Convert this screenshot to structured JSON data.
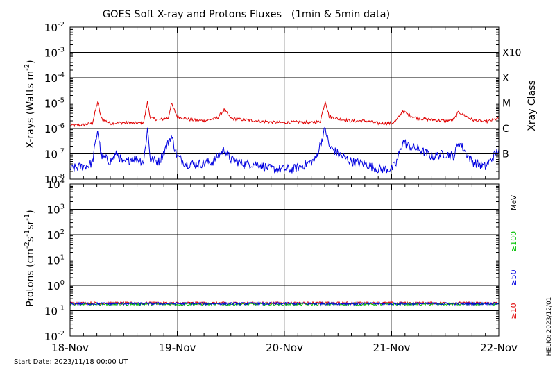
{
  "title": "GOES Soft X-ray and Protons Fluxes   (1min & 5min data)",
  "start_date": "Start Date: 2023/11/18 00:00 UT",
  "helio_stamp": "HELIO: 2023/12/01",
  "colors": {
    "xray_long": "#e00000",
    "xray_short": "#0000e0",
    "proton_10": "#e00000",
    "proton_50": "#0000e0",
    "proton_100": "#00c000",
    "vgrid": "#a0a0a0",
    "frame": "#000000"
  },
  "chart_data": [
    {
      "type": "line",
      "panel": "xray",
      "ylabel_base": "X-rays (Watts m",
      "ylabel_exp": "-2",
      "ylabel_close": ")",
      "yscale": "log",
      "ylim": [
        1e-08,
        0.01
      ],
      "y_ticks": [
        {
          "base": "10",
          "exp": "-8"
        },
        {
          "base": "10",
          "exp": "-7"
        },
        {
          "base": "10",
          "exp": "-6"
        },
        {
          "base": "10",
          "exp": "-5"
        },
        {
          "base": "10",
          "exp": "-4"
        },
        {
          "base": "10",
          "exp": "-3"
        },
        {
          "base": "10",
          "exp": "-2"
        }
      ],
      "x_ticks": [
        "18-Nov",
        "19-Nov",
        "20-Nov",
        "21-Nov",
        "22-Nov"
      ],
      "xlim": [
        "2023-11-18 00:00",
        "2023-11-22 00:00"
      ],
      "grid": "horizontal lines at each decade from 1e-7 to 1e-3; vertical lines at each day",
      "right_axis_label": "Xray Class",
      "class_labels": [
        {
          "label": "B",
          "level": 1e-07
        },
        {
          "label": "C",
          "level": 1e-06
        },
        {
          "label": "M",
          "level": 1e-05
        },
        {
          "label": "X",
          "level": 0.0001
        },
        {
          "label": "X10",
          "level": 0.001
        }
      ],
      "series": [
        {
          "color": "#e00000",
          "x": [
            "2023-11-18 00:00",
            "2023-11-18 03:00",
            "2023-11-18 05:00",
            "2023-11-18 06:10",
            "2023-11-18 07:00",
            "2023-11-18 09:00",
            "2023-11-18 12:00",
            "2023-11-18 15:00",
            "2023-11-18 16:30",
            "2023-11-18 17:20",
            "2023-11-18 18:00",
            "2023-11-18 20:00",
            "2023-11-18 22:00",
            "2023-11-18 22:40",
            "2023-11-19 00:00",
            "2023-11-19 03:00",
            "2023-11-19 06:00",
            "2023-11-19 09:00",
            "2023-11-19 10:30",
            "2023-11-19 12:00",
            "2023-11-19 15:00",
            "2023-11-19 18:00",
            "2023-11-19 21:00",
            "2023-11-20 00:00",
            "2023-11-20 03:00",
            "2023-11-20 06:00",
            "2023-11-20 08:00",
            "2023-11-20 09:10",
            "2023-11-20 10:00",
            "2023-11-20 12:00",
            "2023-11-20 15:00",
            "2023-11-20 18:00",
            "2023-11-20 21:00",
            "2023-11-21 00:00",
            "2023-11-21 01:00",
            "2023-11-21 02:30",
            "2023-11-21 04:00",
            "2023-11-21 06:00",
            "2023-11-21 09:00",
            "2023-11-21 12:00",
            "2023-11-21 14:00",
            "2023-11-21 15:00",
            "2023-11-21 18:00",
            "2023-11-21 21:00",
            "2023-11-22 00:00"
          ],
          "y": [
            1.3e-06,
            1.4e-06,
            1.6e-06,
            1.1e-05,
            2.5e-06,
            1.6e-06,
            1.7e-06,
            1.6e-06,
            1.8e-06,
            1.1e-05,
            2.6e-06,
            2.2e-06,
            2.6e-06,
            9.5e-06,
            3e-06,
            2.2e-06,
            2e-06,
            2.6e-06,
            5.5e-06,
            2.5e-06,
            2.2e-06,
            2e-06,
            1.8e-06,
            1.7e-06,
            1.8e-06,
            1.7e-06,
            1.9e-06,
            1.2e-05,
            3e-06,
            2.4e-06,
            2e-06,
            2e-06,
            1.6e-06,
            1.6e-06,
            2e-06,
            5e-06,
            3.2e-06,
            2.5e-06,
            2.2e-06,
            2e-06,
            2.3e-06,
            4.5e-06,
            2.2e-06,
            1.8e-06,
            2.5e-06
          ]
        },
        {
          "color": "#0000e0",
          "x": [
            "2023-11-18 00:00",
            "2023-11-18 02:00",
            "2023-11-18 04:00",
            "2023-11-18 05:00",
            "2023-11-18 06:10",
            "2023-11-18 07:00",
            "2023-11-18 09:00",
            "2023-11-18 10:30",
            "2023-11-18 12:00",
            "2023-11-18 14:00",
            "2023-11-18 16:30",
            "2023-11-18 17:20",
            "2023-11-18 18:00",
            "2023-11-18 20:00",
            "2023-11-18 22:40",
            "2023-11-19 00:00",
            "2023-11-19 02:00",
            "2023-11-19 05:00",
            "2023-11-19 08:00",
            "2023-11-19 10:30",
            "2023-11-19 12:00",
            "2023-11-19 15:00",
            "2023-11-19 18:00",
            "2023-11-19 21:00",
            "2023-11-20 00:00",
            "2023-11-20 02:00",
            "2023-11-20 05:00",
            "2023-11-20 07:00",
            "2023-11-20 09:10",
            "2023-11-20 10:00",
            "2023-11-20 12:00",
            "2023-11-20 15:00",
            "2023-11-20 18:00",
            "2023-11-20 21:00",
            "2023-11-21 00:00",
            "2023-11-21 01:00",
            "2023-11-21 02:30",
            "2023-11-21 04:00",
            "2023-11-21 06:00",
            "2023-11-21 09:00",
            "2023-11-21 12:00",
            "2023-11-21 14:00",
            "2023-11-21 15:00",
            "2023-11-21 18:00",
            "2023-11-21 21:00",
            "2023-11-22 00:00"
          ],
          "y": [
            2.5e-08,
            3e-08,
            3.5e-08,
            4.5e-08,
            9e-07,
            8e-08,
            5e-08,
            1e-07,
            4e-08,
            7e-08,
            5e-08,
            1e-06,
            6e-08,
            5e-08,
            5e-07,
            8e-08,
            4e-08,
            4e-08,
            5e-08,
            1.5e-07,
            6e-08,
            4e-08,
            4e-08,
            2.5e-08,
            2.5e-08,
            2.5e-08,
            4e-08,
            6e-08,
            1e-06,
            2e-07,
            1e-07,
            5e-08,
            4e-08,
            2.5e-08,
            2.5e-08,
            4e-08,
            3e-07,
            2e-07,
            1.5e-07,
            8e-08,
            1e-07,
            8e-08,
            3e-07,
            5e-08,
            3e-08,
            1.5e-07
          ]
        }
      ]
    },
    {
      "type": "line",
      "panel": "protons",
      "ylabel_base": "Protons (cm",
      "ylabel_exp1": "-2",
      "ylabel_mid1": "s",
      "ylabel_exp2": "-1",
      "ylabel_mid2": "sr",
      "ylabel_exp3": "-1",
      "ylabel_close": ")",
      "yscale": "log",
      "ylim": [
        0.01,
        10000
      ],
      "y_ticks": [
        {
          "base": "10",
          "exp": "-2"
        },
        {
          "base": "10",
          "exp": "-1"
        },
        {
          "base": "10",
          "exp": "0"
        },
        {
          "base": "10",
          "exp": "1"
        },
        {
          "base": "10",
          "exp": "2"
        },
        {
          "base": "10",
          "exp": "3"
        },
        {
          "base": "10",
          "exp": "4"
        }
      ],
      "x_ticks": [
        "18-Nov",
        "19-Nov",
        "20-Nov",
        "21-Nov",
        "22-Nov"
      ],
      "xlim": [
        "2023-11-18 00:00",
        "2023-11-22 00:00"
      ],
      "grid": "horizontal lines at each decade; dashed line at 10; vertical lines at each day",
      "threshold_dashed": 10,
      "right_labels": {
        "unit": "MeV",
        "p100": "≥100",
        "p50": "≥50",
        "p10": "≥10"
      },
      "series": [
        {
          "color": "#e00000",
          "x": [
            "2023-11-18 00:00",
            "2023-11-22 00:00"
          ],
          "y": [
            0.2,
            0.2
          ]
        },
        {
          "color": "#00c000",
          "x": [
            "2023-11-18 00:00",
            "2023-11-22 00:00"
          ],
          "y": [
            0.18,
            0.18
          ]
        },
        {
          "color": "#0000e0",
          "x": [
            "2023-11-18 00:00",
            "2023-11-22 00:00"
          ],
          "y": [
            0.19,
            0.19
          ]
        }
      ]
    }
  ]
}
